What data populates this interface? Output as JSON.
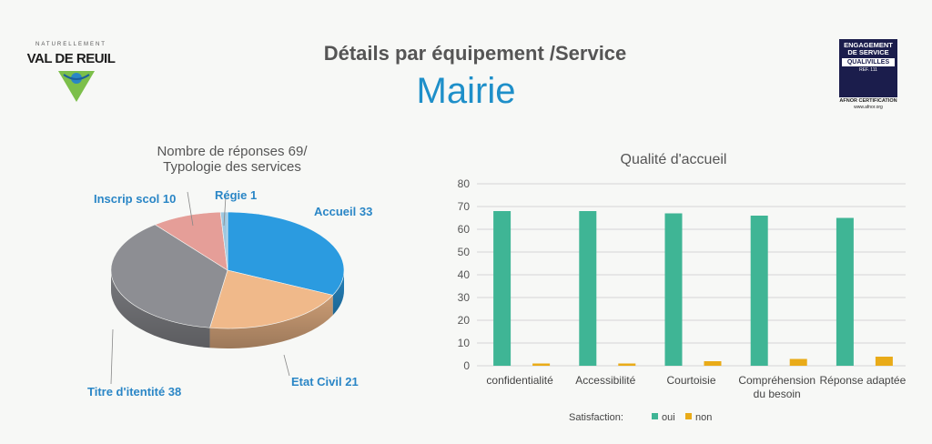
{
  "header": {
    "title": "Détails par équipement /Service",
    "subtitle": "Mairie"
  },
  "logo_left": {
    "tagline": "NATURELLEMENT",
    "name": "VAL DE REUIL"
  },
  "logo_right": {
    "line1": "ENGAGEMENT",
    "line2": "DE SERVICE",
    "badge": "QUALIVILLES",
    "ref": "REF. 111",
    "cert": "AFNOR CERTIFICATION",
    "site": "www.afnor.org"
  },
  "colors": {
    "accent_blue": "#1e8fc9",
    "oui": "#3fb595",
    "non": "#e9ab18",
    "pie_accueil": "#2b9be0",
    "pie_etat": "#f0b98a",
    "pie_titre": "#8d8e93",
    "pie_inscrip": "#e59e98",
    "pie_regie": "#9fc8e0"
  },
  "chart_data": [
    {
      "type": "pie",
      "title": "Nombre de réponses 69/ Typologie des services",
      "title_lines": [
        "Nombre de réponses 69/",
        "Typologie des services"
      ],
      "slices": [
        {
          "label": "Accueil 33",
          "value": 33
        },
        {
          "label": "Etat Civil 21",
          "value": 21
        },
        {
          "label": "Titre d'itentité 38",
          "value": 38
        },
        {
          "label": "Inscrip scol 10",
          "value": 10
        },
        {
          "label": "Régie  1",
          "value": 1
        }
      ]
    },
    {
      "type": "bar",
      "title": "Qualité d'accueil",
      "categories": [
        "confidentialité",
        "Accessibilité",
        "Courtoisie",
        "Compréhension du besoin",
        "Réponse adaptée"
      ],
      "category_lines": [
        [
          "confidentialité"
        ],
        [
          "Accessibilité"
        ],
        [
          "Courtoisie"
        ],
        [
          "Compréhension",
          "du besoin"
        ],
        [
          "Réponse adaptée"
        ]
      ],
      "series": [
        {
          "name": "oui",
          "values": [
            68,
            68,
            67,
            66,
            65
          ]
        },
        {
          "name": "non",
          "values": [
            1,
            1,
            2,
            3,
            4
          ]
        }
      ],
      "legend_title": "Satisfaction:",
      "legend_position": "bottom",
      "ylim": [
        0,
        80
      ],
      "yticks": [
        0,
        10,
        20,
        30,
        40,
        50,
        60,
        70,
        80
      ],
      "grid": true
    }
  ]
}
